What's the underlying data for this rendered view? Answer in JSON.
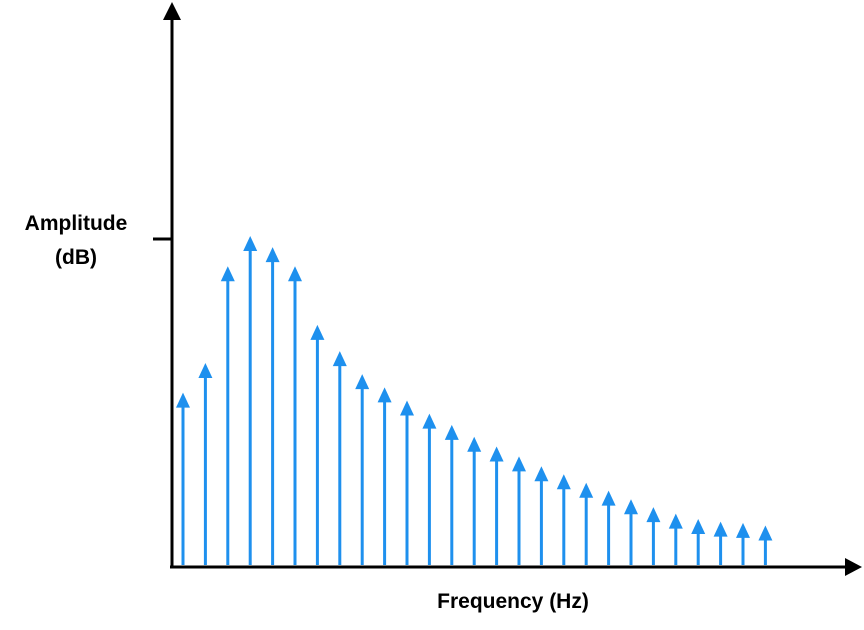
{
  "chart_data": {
    "type": "bar",
    "title": "",
    "xlabel": "Frequency (Hz)",
    "ylabel_line1": "Amplitude",
    "ylabel_line2": "(dB)",
    "x": [
      1,
      2,
      3,
      4,
      5,
      6,
      7,
      8,
      9,
      10,
      11,
      12,
      13,
      14,
      15,
      16,
      17,
      18,
      19,
      20,
      21,
      22,
      23,
      24,
      25,
      26,
      27
    ],
    "values": [
      0.524,
      0.614,
      0.908,
      1.0,
      0.966,
      0.908,
      0.73,
      0.65,
      0.58,
      0.54,
      0.5,
      0.46,
      0.426,
      0.39,
      0.36,
      0.33,
      0.3,
      0.276,
      0.25,
      0.226,
      0.2,
      0.176,
      0.156,
      0.14,
      0.132,
      0.128,
      0.12
    ],
    "reference_tick": 1.0,
    "ylim": [
      0,
      1.0
    ],
    "grid": false,
    "legend": "none",
    "colors": {
      "stem": "#1e90ee",
      "axis": "#000000"
    }
  }
}
